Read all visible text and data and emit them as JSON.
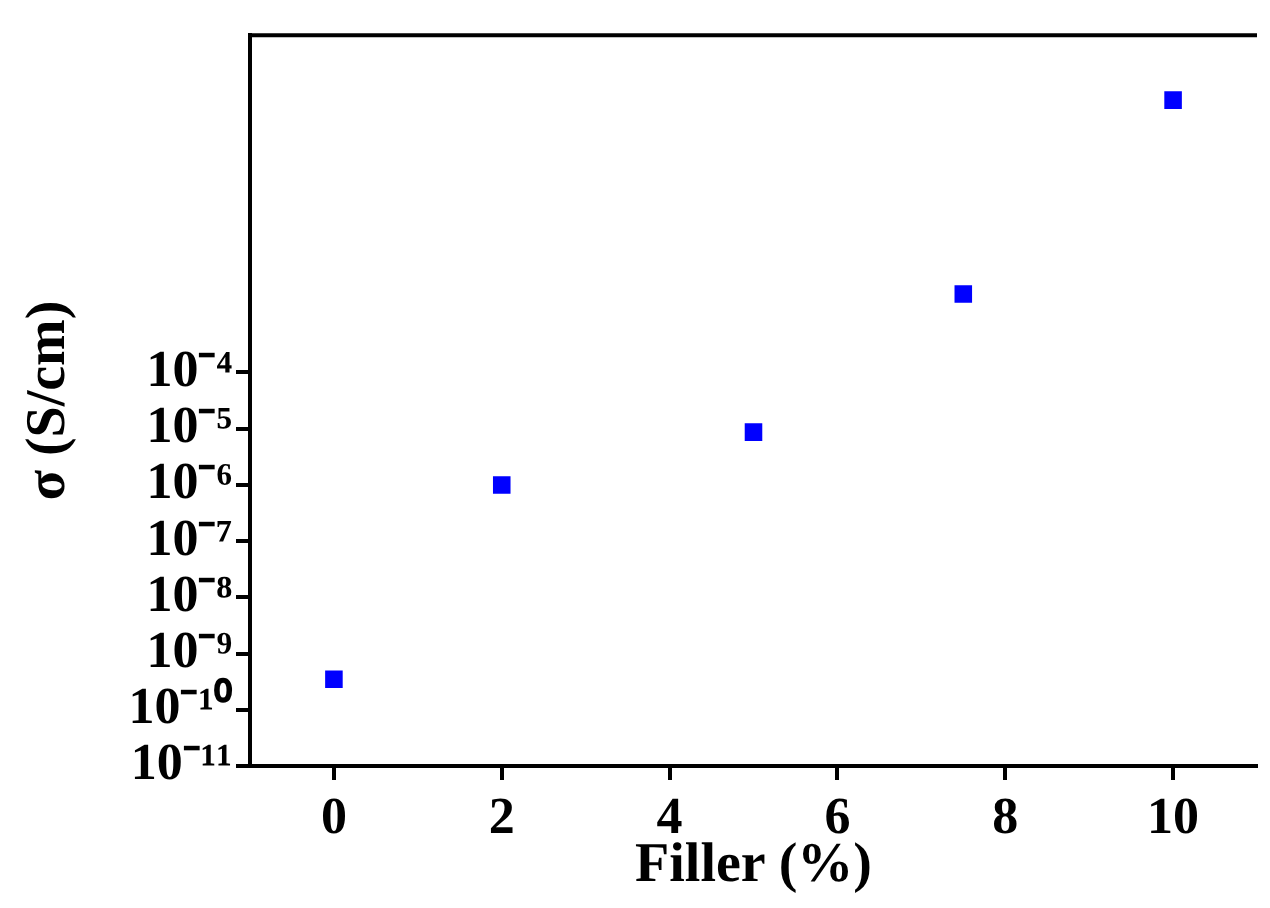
{
  "chart_data": {
    "type": "scatter",
    "xlabel": "Filler (%)",
    "ylabel": "σ (S/cm)",
    "x": [
      0,
      2,
      5,
      7.5,
      10
    ],
    "series": [
      {
        "color": "#0000ff",
        "values": [
          3.5e-10,
          1e-06,
          8.7e-06,
          0.0025,
          7
        ]
      }
    ],
    "xlim": [
      -1,
      11
    ],
    "xticks": [
      0,
      2,
      4,
      6,
      8,
      10
    ],
    "ylim": [
      1e-11,
      100
    ],
    "yticks": [
      {
        "value": 1e-11,
        "label": "10⁻¹¹"
      },
      {
        "value": 1e-10,
        "label": "10⁻¹⁰"
      },
      {
        "value": 1e-09,
        "label": "10⁻⁹"
      },
      {
        "value": 1e-08,
        "label": "10⁻⁸"
      },
      {
        "value": 1e-07,
        "label": "10⁻⁷"
      },
      {
        "value": 1e-06,
        "label": "10⁻⁶"
      },
      {
        "value": 1e-05,
        "label": "10⁻⁵"
      },
      {
        "value": 0.0001,
        "label": "10⁻⁴"
      }
    ],
    "log": "y",
    "grid": false,
    "legend": false,
    "marker": "square"
  }
}
